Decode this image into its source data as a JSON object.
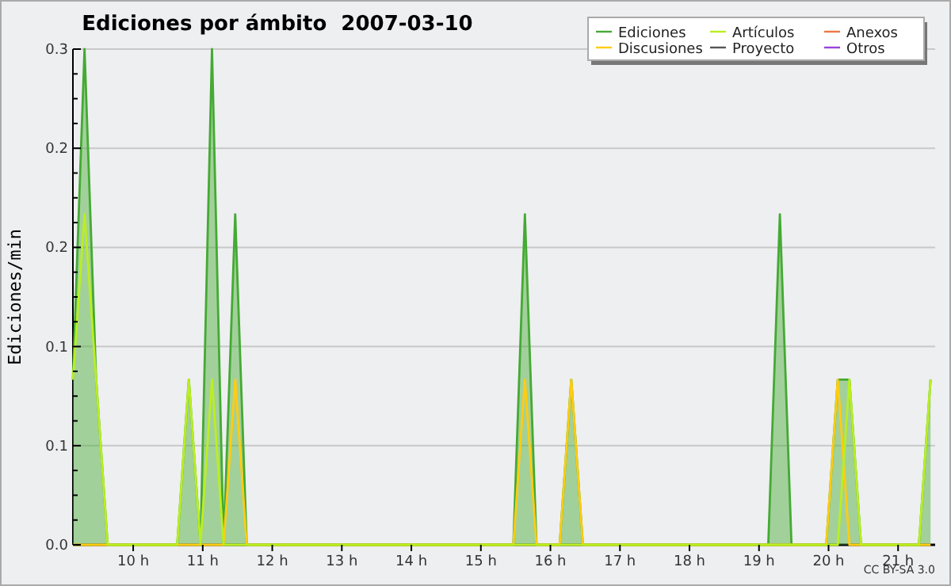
{
  "chart_data": {
    "type": "line",
    "title": "Ediciones por ámbito  2007-03-10",
    "ylabel": "Ediciones/min",
    "annotations": [
      "CC BY-SA 3.0"
    ],
    "x": [
      9.133,
      9.3,
      9.467,
      9.633,
      10.633,
      10.8,
      10.967,
      11.133,
      11.3,
      11.467,
      11.633,
      15.467,
      15.633,
      15.8,
      16.133,
      16.3,
      16.467,
      19.133,
      19.3,
      19.467,
      19.967,
      20.133,
      20.3,
      20.467,
      21.3,
      21.467
    ],
    "series": [
      {
        "name": "Ediciones",
        "type": "area",
        "color": "#44aa33",
        "values": [
          0.1,
          0.3,
          0.1,
          0,
          0,
          0.1,
          0,
          0.3,
          0,
          0.2,
          0,
          0,
          0.2,
          0,
          0,
          0.1,
          0,
          0,
          0.2,
          0,
          0,
          0.1,
          0.1,
          0,
          0,
          0.1
        ]
      },
      {
        "name": "Discusiones",
        "color": "#ffcc11",
        "values": [
          0,
          0,
          0,
          0,
          0,
          0,
          0,
          0,
          0,
          0.1,
          0,
          0,
          0.1,
          0,
          0,
          0.1,
          0,
          0,
          0,
          0,
          0,
          0.1,
          0,
          0,
          0,
          0
        ]
      },
      {
        "name": "Artículos",
        "color": "#bbee22",
        "values": [
          0.1,
          0.2,
          0.1,
          0,
          0,
          0.1,
          0,
          0.1,
          0,
          0,
          0,
          0,
          0,
          0,
          0,
          0,
          0,
          0,
          0,
          0,
          0,
          0,
          0.1,
          0,
          0,
          0.1
        ]
      },
      {
        "name": "Proyecto",
        "color": "#555555",
        "values": [
          null,
          null,
          null,
          null,
          null,
          null,
          null,
          null,
          null,
          null,
          null,
          null,
          null,
          null,
          null,
          null,
          null,
          null,
          null,
          null,
          null,
          null,
          null,
          null,
          null,
          null
        ]
      },
      {
        "name": "Anexos",
        "color": "#ee7744",
        "values": [
          null,
          null,
          null,
          null,
          null,
          null,
          null,
          null,
          null,
          null,
          null,
          null,
          null,
          null,
          null,
          null,
          null,
          null,
          null,
          null,
          null,
          null,
          null,
          null,
          null,
          null
        ]
      },
      {
        "name": "Otros",
        "color": "#9944dd",
        "values": [
          null,
          null,
          null,
          null,
          null,
          null,
          null,
          null,
          null,
          null,
          null,
          null,
          null,
          null,
          null,
          null,
          null,
          null,
          null,
          null,
          null,
          null,
          null,
          null,
          null,
          null
        ]
      }
    ],
    "xlim": [
      9.133,
      21.533
    ],
    "xticks": [
      {
        "value": 10,
        "label": "10 h"
      },
      {
        "value": 11,
        "label": "11 h"
      },
      {
        "value": 12,
        "label": "12 h"
      },
      {
        "value": 13,
        "label": "13 h"
      },
      {
        "value": 14,
        "label": "14 h"
      },
      {
        "value": 15,
        "label": "15 h"
      },
      {
        "value": 16,
        "label": "16 h"
      },
      {
        "value": 17,
        "label": "17 h"
      },
      {
        "value": 18,
        "label": "18 h"
      },
      {
        "value": 19,
        "label": "19 h"
      },
      {
        "value": 20,
        "label": "20 h"
      },
      {
        "value": 21,
        "label": "21 h"
      }
    ],
    "ylim": [
      0,
      0.3
    ],
    "yticks": [
      {
        "value": 0,
        "label": "0.0"
      },
      {
        "value": 0.06,
        "label": "0.1"
      },
      {
        "value": 0.12,
        "label": "0.1"
      },
      {
        "value": 0.18,
        "label": "0.2"
      },
      {
        "value": 0.24,
        "label": "0.2"
      },
      {
        "value": 0.3,
        "label": "0.3"
      },
      {
        "value": 0.015,
        "label": null
      },
      {
        "value": 0.03,
        "label": null
      },
      {
        "value": 0.045,
        "label": null
      },
      {
        "value": 0.075,
        "label": null
      },
      {
        "value": 0.09,
        "label": null
      },
      {
        "value": 0.105,
        "label": null
      },
      {
        "value": 0.135,
        "label": null
      },
      {
        "value": 0.15,
        "label": null
      },
      {
        "value": 0.165,
        "label": null
      },
      {
        "value": 0.195,
        "label": null
      },
      {
        "value": 0.21,
        "label": null
      },
      {
        "value": 0.225,
        "label": null
      },
      {
        "value": 0.255,
        "label": null
      },
      {
        "value": 0.27,
        "label": null
      },
      {
        "value": 0.285,
        "label": null
      }
    ],
    "grid": "y",
    "legend": "top right"
  }
}
